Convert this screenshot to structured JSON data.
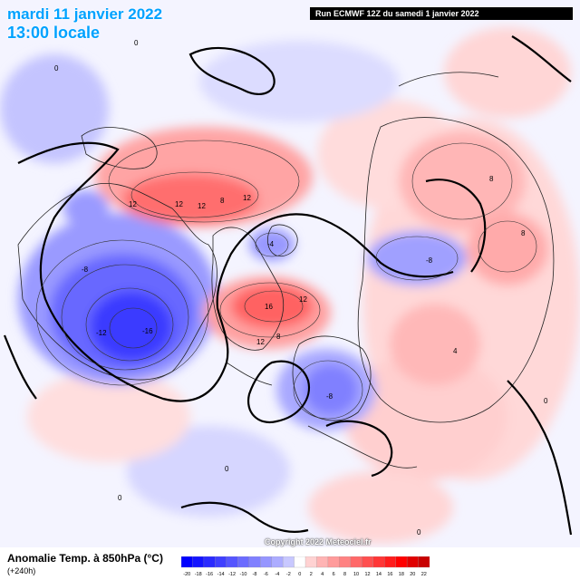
{
  "header": {
    "date": "mardi 11 janvier 2022",
    "local_time": "13:00 locale",
    "run_info": "Run ECMWF 12Z du samedi 1 janvier 2022"
  },
  "footer": {
    "title": "Anomalie Temp. à 850hPa (°C)",
    "step": "(+240h)",
    "copyright": "Copyright 2022 Meteociel.fr"
  },
  "legend": {
    "values": [
      "-20",
      "-18",
      "-16",
      "-14",
      "-12",
      "-10",
      "-8",
      "-6",
      "-4",
      "-2",
      "0",
      "2",
      "4",
      "6",
      "8",
      "10",
      "12",
      "14",
      "16",
      "18",
      "20",
      "22"
    ],
    "colors": [
      "#0000ff",
      "#1414ff",
      "#2a2aff",
      "#3f3fff",
      "#5555ff",
      "#6b6bff",
      "#8080ff",
      "#9696ff",
      "#acacff",
      "#c8c8ff",
      "#ffffff",
      "#ffd2d2",
      "#ffb4b4",
      "#ff9b9b",
      "#ff8282",
      "#ff6868",
      "#ff4f4f",
      "#ff3636",
      "#ff1c1c",
      "#ff0000",
      "#e00000",
      "#c80000"
    ]
  },
  "map_labels": [
    {
      "text": "12"
    },
    {
      "text": "12"
    },
    {
      "text": "12"
    },
    {
      "text": "8"
    },
    {
      "text": "12"
    },
    {
      "text": "16"
    },
    {
      "text": "12"
    },
    {
      "text": "12"
    },
    {
      "text": "8"
    },
    {
      "text": "-12"
    },
    {
      "text": "-16"
    },
    {
      "text": "-8"
    },
    {
      "text": "-8"
    },
    {
      "text": "-8"
    },
    {
      "text": "-4"
    },
    {
      "text": "8"
    },
    {
      "text": "8"
    },
    {
      "text": "4"
    },
    {
      "text": "0"
    },
    {
      "text": "0"
    },
    {
      "text": "0"
    },
    {
      "text": "0"
    },
    {
      "text": "0"
    },
    {
      "text": "0"
    }
  ]
}
